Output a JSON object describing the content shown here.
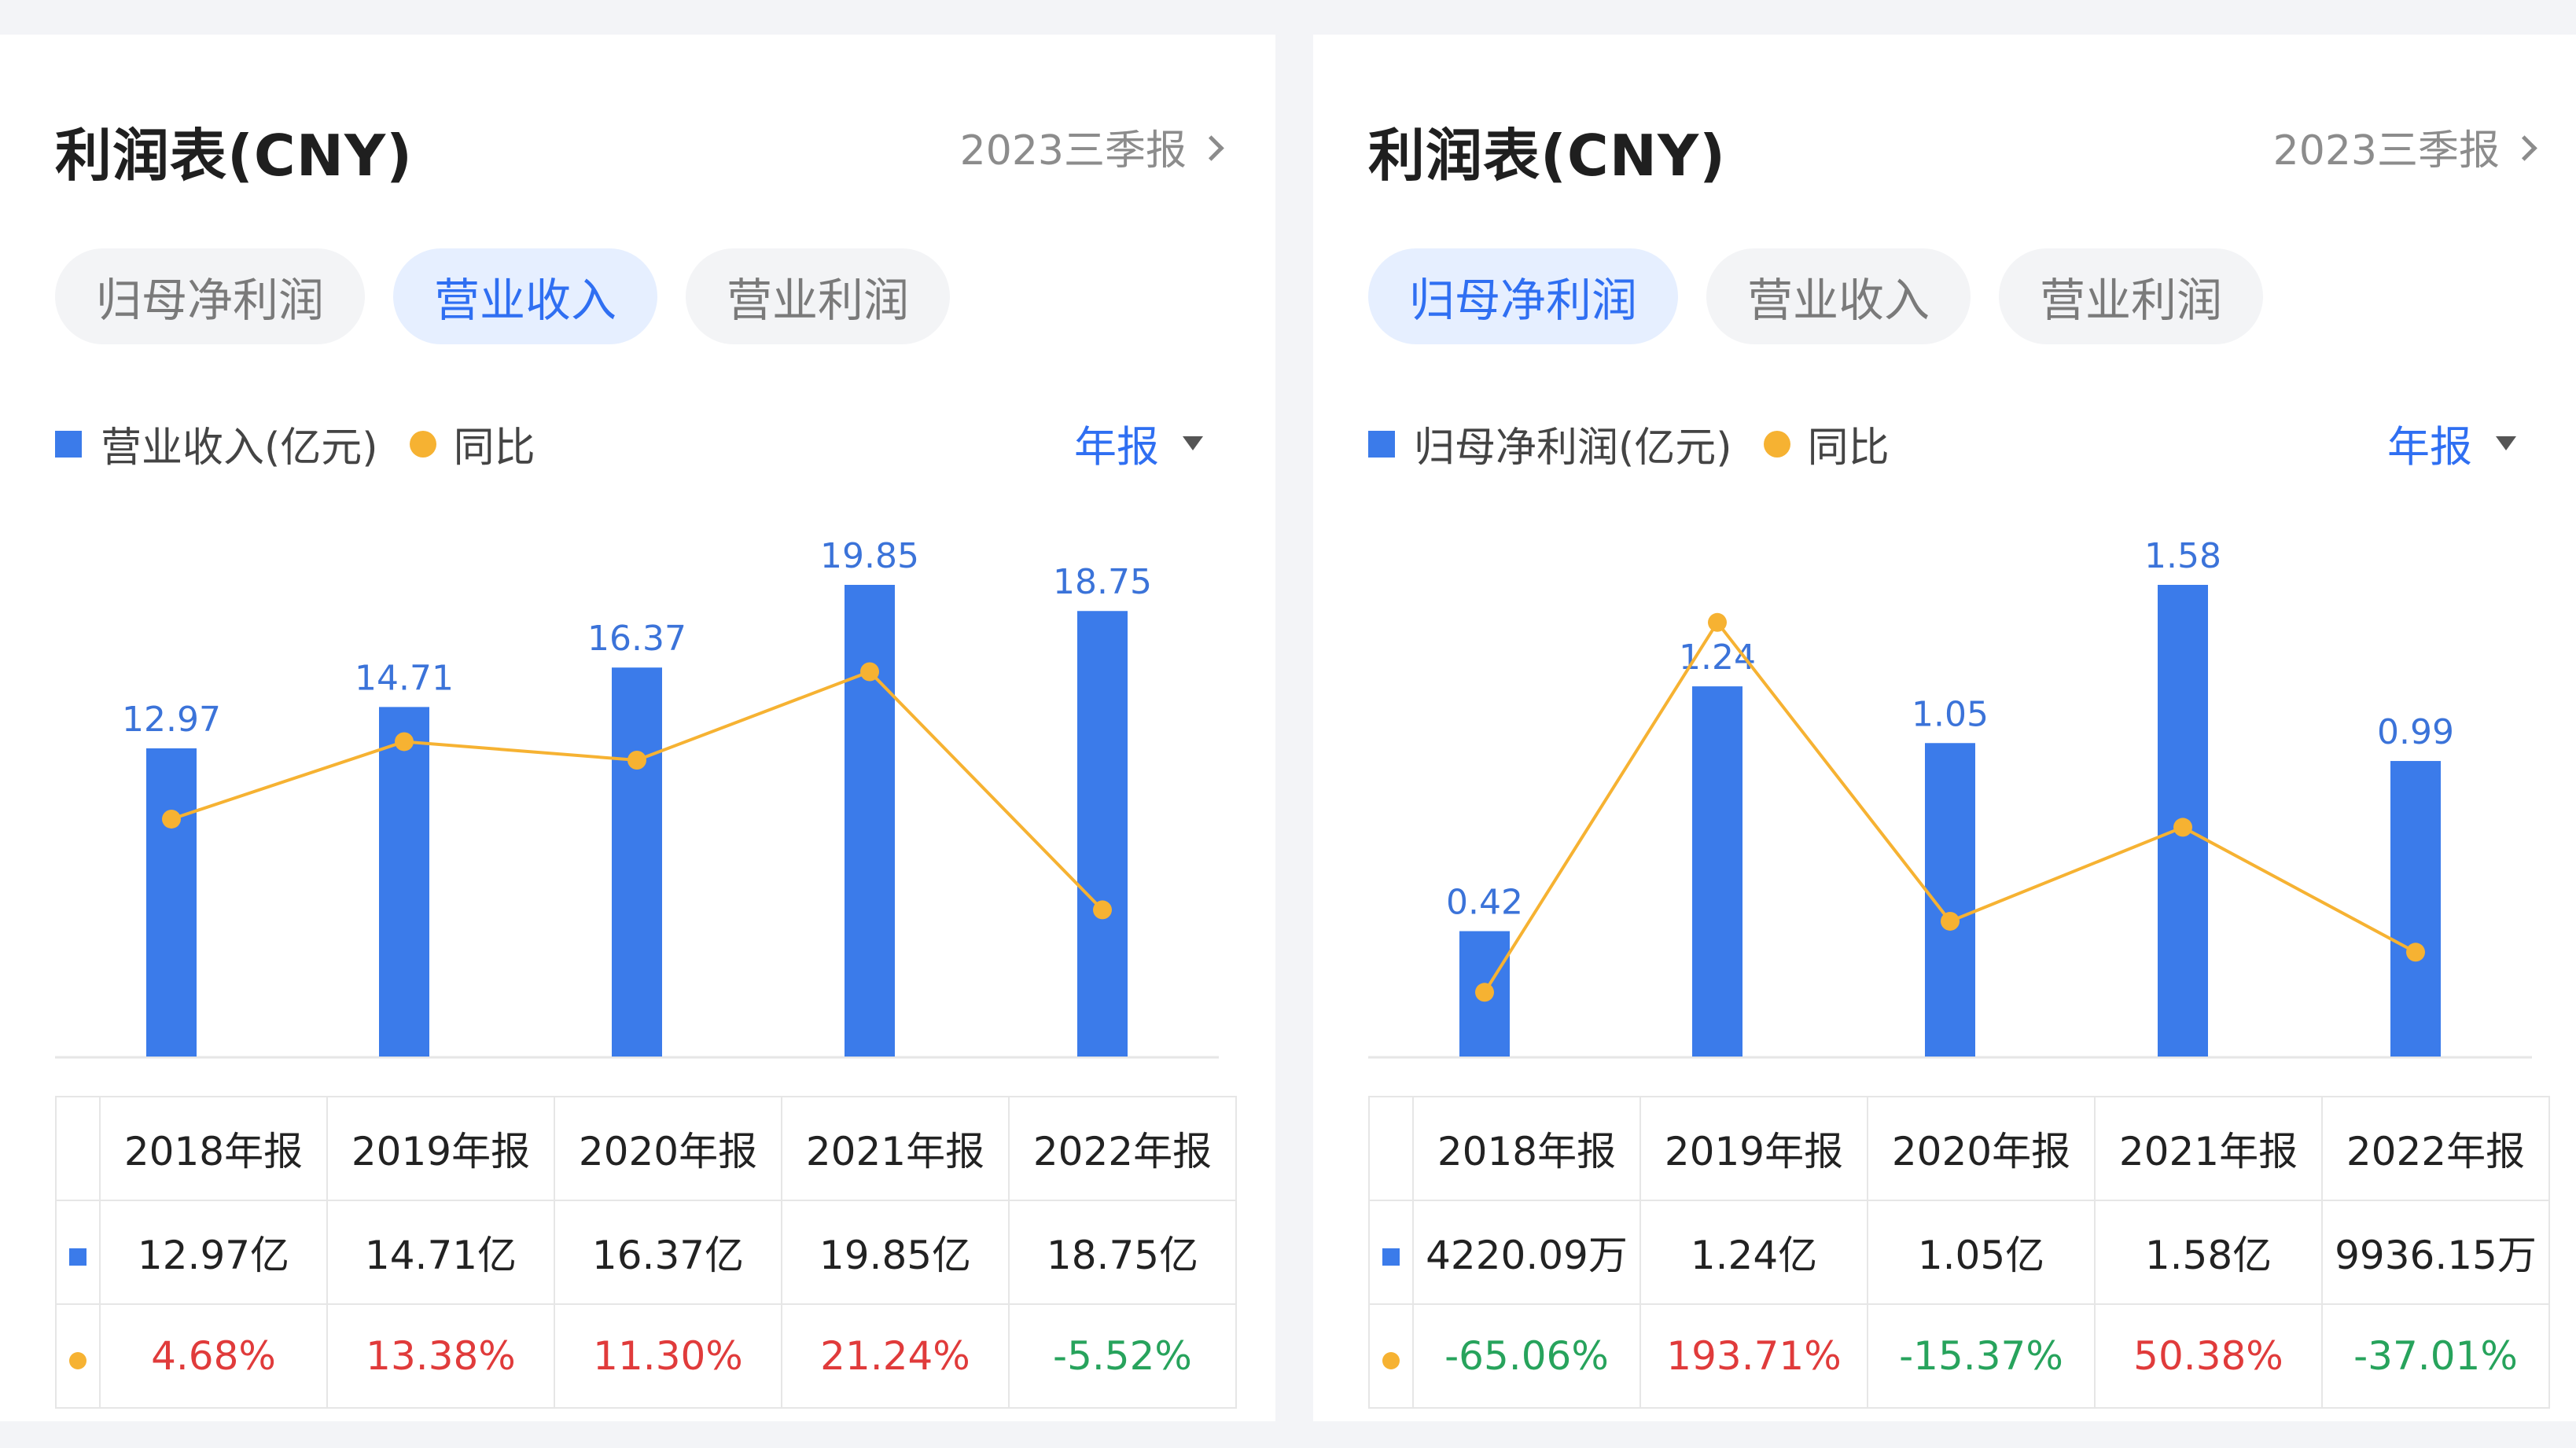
{
  "colors": {
    "bar": "#3b7bea",
    "line": "#f6b232",
    "up": "#e03b3b",
    "down": "#27a35c",
    "accent": "#2f6ff2"
  },
  "left": {
    "title": "利润表(CNY)",
    "period_link": "2023三季报",
    "tabs": [
      "归母净利润",
      "营业收入",
      "营业利润"
    ],
    "active_tab": 1,
    "legend": {
      "bar": "营业收入(亿元)",
      "line": "同比"
    },
    "period_select": "年报",
    "table": {
      "headers": [
        "2018年报",
        "2019年报",
        "2020年报",
        "2021年报",
        "2022年报"
      ],
      "values": [
        "12.97亿",
        "14.71亿",
        "16.37亿",
        "19.85亿",
        "18.75亿"
      ],
      "yoy": [
        "4.68%",
        "13.38%",
        "11.30%",
        "21.24%",
        "-5.52%"
      ]
    }
  },
  "right": {
    "title": "利润表(CNY)",
    "period_link": "2023三季报",
    "tabs": [
      "归母净利润",
      "营业收入",
      "营业利润"
    ],
    "active_tab": 0,
    "legend": {
      "bar": "归母净利润(亿元)",
      "line": "同比"
    },
    "period_select": "年报",
    "table": {
      "headers": [
        "2018年报",
        "2019年报",
        "2020年报",
        "2021年报",
        "2022年报"
      ],
      "values": [
        "4220.09万",
        "1.24亿",
        "1.05亿",
        "1.58亿",
        "9936.15万"
      ],
      "yoy": [
        "-65.06%",
        "193.71%",
        "-15.37%",
        "50.38%",
        "-37.01%"
      ]
    }
  },
  "chart_data": [
    {
      "type": "bar",
      "categories": [
        "2018年报",
        "2019年报",
        "2020年报",
        "2021年报",
        "2022年报"
      ],
      "series": [
        {
          "name": "营业收入(亿元)",
          "type": "bar",
          "values": [
            12.97,
            14.71,
            16.37,
            19.85,
            18.75
          ],
          "labels": [
            "12.97",
            "14.71",
            "16.37",
            "19.85",
            "18.75"
          ]
        },
        {
          "name": "同比",
          "type": "line",
          "unit": "%",
          "values": [
            4.68,
            13.38,
            11.3,
            21.24,
            -5.52
          ]
        }
      ],
      "ylim": [
        0,
        19.85
      ],
      "line_ylim": [
        -22,
        31
      ],
      "grid": false,
      "legend": "top-left"
    },
    {
      "type": "bar",
      "categories": [
        "2018年报",
        "2019年报",
        "2020年报",
        "2021年报",
        "2022年报"
      ],
      "series": [
        {
          "name": "归母净利润(亿元)",
          "type": "bar",
          "values": [
            0.42,
            1.24,
            1.05,
            1.58,
            0.99
          ],
          "labels": [
            "0.42",
            "1.24",
            "1.05",
            "1.58",
            "0.99"
          ]
        },
        {
          "name": "同比",
          "type": "line",
          "unit": "%",
          "values": [
            -65.06,
            193.71,
            -15.37,
            50.38,
            -37.01
          ]
        }
      ],
      "ylim": [
        0,
        1.58
      ],
      "line_ylim": [
        -110,
        220
      ],
      "grid": false,
      "legend": "top-left"
    }
  ]
}
